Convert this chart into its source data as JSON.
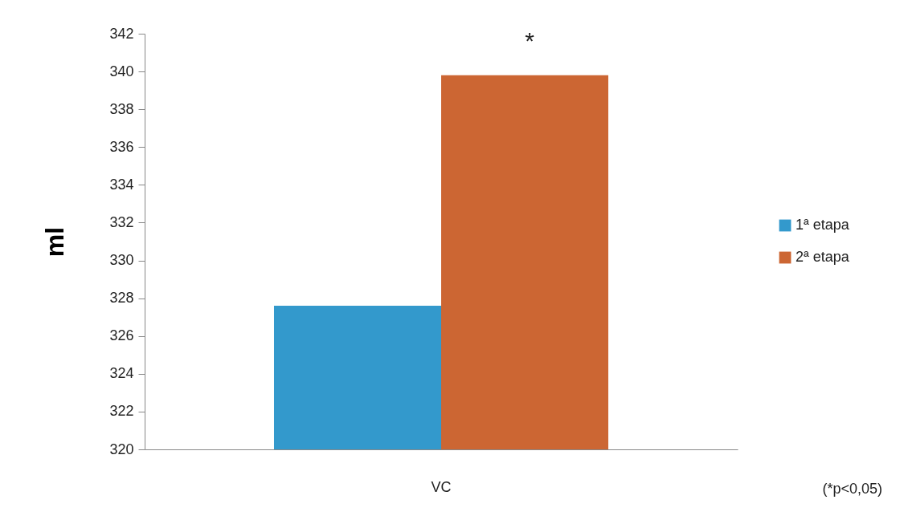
{
  "chart_data": {
    "type": "bar",
    "categories": [
      "VC"
    ],
    "ylabel": "ml",
    "series": [
      {
        "name": "1ª etapa",
        "color": "#3399cc",
        "values": [
          327.6
        ]
      },
      {
        "name": "2ª etapa",
        "color": "#cc6633",
        "values": [
          339.8
        ]
      }
    ],
    "ylim": [
      320,
      342
    ],
    "yticks": [
      320,
      322,
      324,
      326,
      328,
      330,
      332,
      334,
      336,
      338,
      340,
      342
    ],
    "legend": "right",
    "annotations": [
      "*",
      "(*p<0,05)"
    ]
  }
}
